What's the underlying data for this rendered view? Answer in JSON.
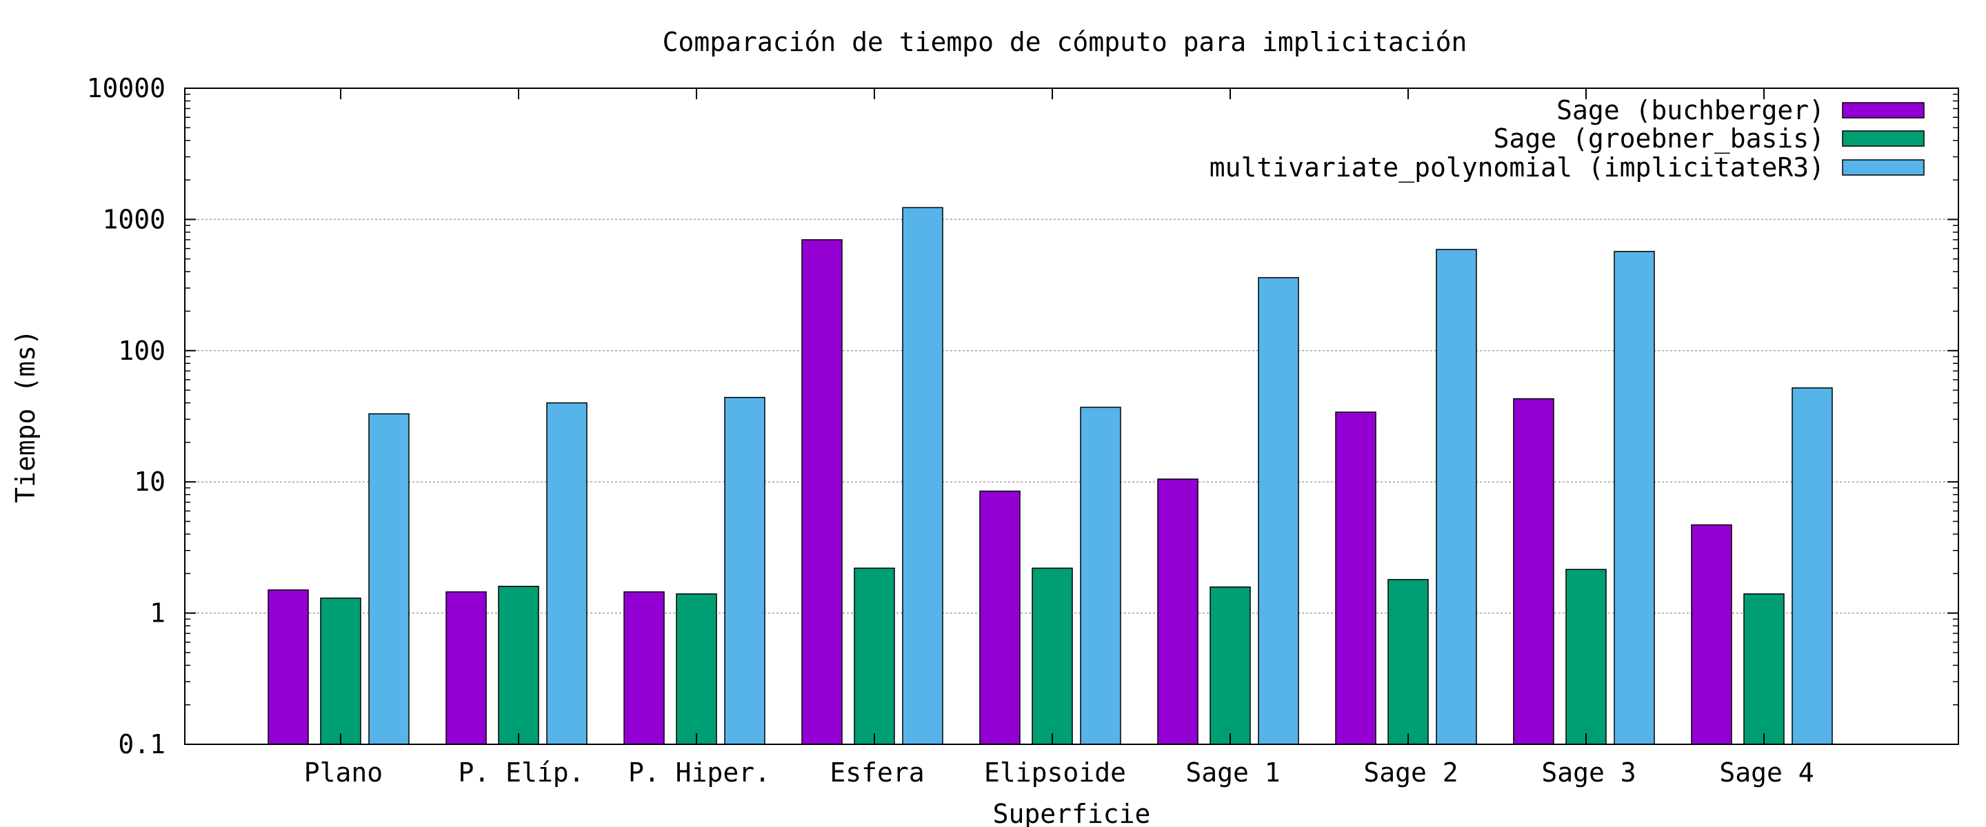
{
  "chart_data": {
    "type": "bar",
    "title": "Comparación de tiempo de cómputo para implicitación",
    "xlabel": "Superficie",
    "ylabel": "Tiempo (ms)",
    "yscale": "log",
    "ylim": [
      0.1,
      10000
    ],
    "yticks": [
      "0.1",
      "1",
      "10",
      "100",
      "1000",
      "10000"
    ],
    "grid": true,
    "legend_position": "top-right",
    "categories": [
      "Plano",
      "P. Elíp.",
      "P. Hiper.",
      "Esfera",
      "Elipsoide",
      "Sage 1",
      "Sage 2",
      "Sage 3",
      "Sage 4"
    ],
    "series": [
      {
        "name": "Sage (buchberger)",
        "color": "#9400d3",
        "values": [
          1.5,
          1.45,
          1.45,
          700,
          8.5,
          10.5,
          34,
          43,
          4.7
        ]
      },
      {
        "name": "Sage (groebner_basis)",
        "color": "#009e73",
        "values": [
          1.3,
          1.6,
          1.4,
          2.2,
          2.2,
          1.58,
          1.8,
          2.15,
          1.4
        ]
      },
      {
        "name": "multivariate_polynomial (implicitateR3)",
        "color": "#56b4e9",
        "values": [
          33,
          40,
          44,
          1230,
          37,
          360,
          590,
          570,
          52
        ]
      }
    ]
  }
}
